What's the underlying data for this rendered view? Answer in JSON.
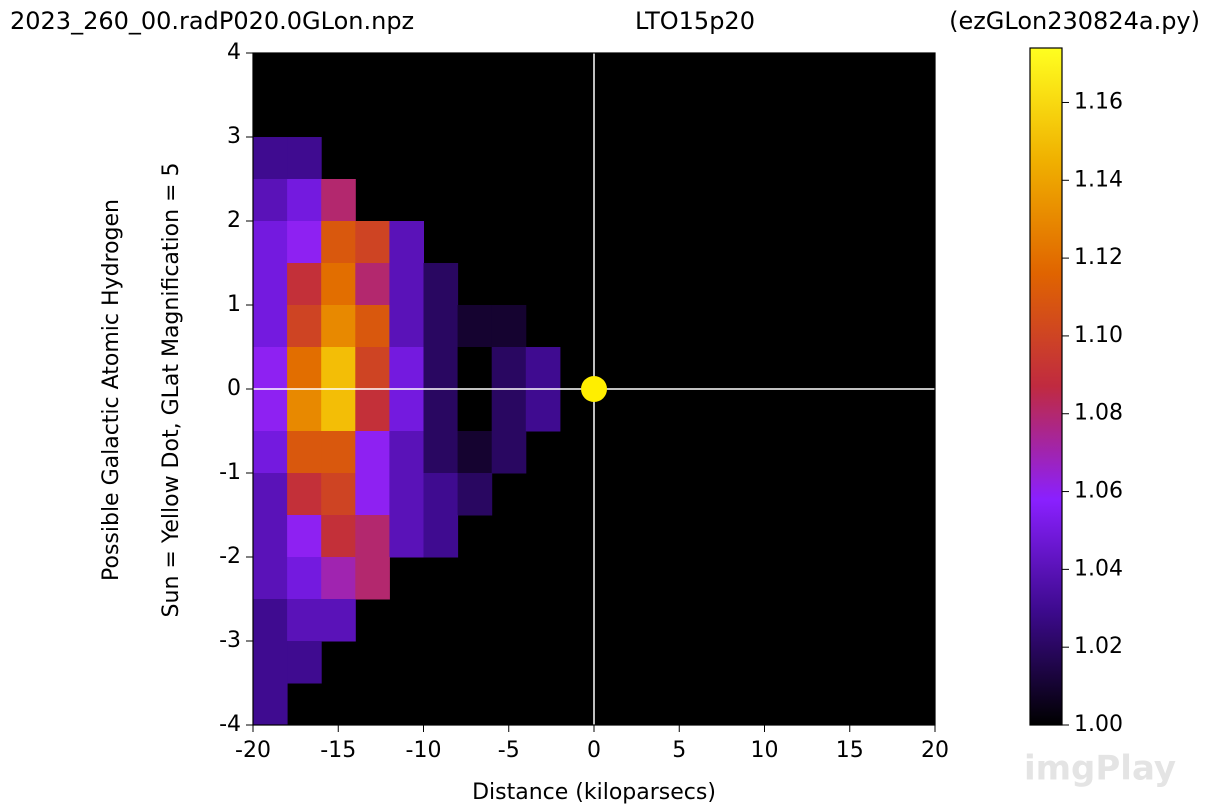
{
  "chart_data": {
    "type": "heatmap",
    "title_left": "2023_260_00.radP020.0GLon.npz",
    "title_center": "LTO15p20",
    "title_right": "(ezGLon230824a.py)",
    "ylabel": [
      "Possible Galactic Atomic Hydrogen",
      "Sun = Yellow Dot, GLat Magnification = 5"
    ],
    "xlabel": "Distance (kiloparsecs)",
    "xlim": [
      -20,
      20
    ],
    "xticks": [
      -20,
      -15,
      -10,
      -5,
      0,
      5,
      10,
      15,
      20
    ],
    "ylim": [
      -4,
      4
    ],
    "yticks": [
      -4,
      -3,
      -2,
      -1,
      0,
      1,
      2,
      3,
      4
    ],
    "x": [
      -19,
      -17,
      -15,
      -13,
      -11,
      -9,
      -7,
      -5,
      -3,
      -1
    ],
    "y": [
      3.75,
      3.25,
      2.75,
      2.25,
      1.75,
      1.25,
      0.75,
      0.25,
      -0.25,
      -0.75,
      -1.25,
      -1.75,
      -2.25,
      -2.75,
      -3.25,
      -3.75
    ],
    "z": [
      [
        null,
        null,
        null,
        null,
        null,
        null,
        null,
        null,
        null,
        null
      ],
      [
        null,
        null,
        null,
        null,
        null,
        null,
        null,
        null,
        null,
        null
      ],
      [
        1.03,
        1.03,
        null,
        null,
        null,
        null,
        null,
        null,
        null,
        null
      ],
      [
        1.04,
        1.05,
        1.08,
        null,
        null,
        null,
        null,
        null,
        null,
        null
      ],
      [
        1.05,
        1.06,
        1.11,
        1.1,
        1.04,
        null,
        null,
        null,
        null,
        null
      ],
      [
        1.05,
        1.09,
        1.12,
        1.08,
        1.04,
        1.02,
        null,
        null,
        null,
        null
      ],
      [
        1.05,
        1.1,
        1.13,
        1.11,
        1.04,
        1.02,
        1.01,
        1.01,
        null,
        null
      ],
      [
        1.06,
        1.12,
        1.15,
        1.1,
        1.05,
        1.02,
        1.0,
        1.02,
        1.03,
        null
      ],
      [
        1.06,
        1.13,
        1.15,
        1.09,
        1.05,
        1.02,
        1.0,
        1.02,
        1.03,
        null
      ],
      [
        1.05,
        1.11,
        1.11,
        1.06,
        1.04,
        1.02,
        1.01,
        1.02,
        null,
        null
      ],
      [
        1.04,
        1.09,
        1.1,
        1.06,
        1.04,
        1.03,
        1.02,
        null,
        null,
        null
      ],
      [
        1.04,
        1.06,
        1.09,
        1.08,
        1.04,
        1.03,
        null,
        null,
        null,
        null
      ],
      [
        1.04,
        1.05,
        1.07,
        1.08,
        null,
        null,
        null,
        null,
        null,
        null
      ],
      [
        1.03,
        1.04,
        1.04,
        null,
        null,
        null,
        null,
        null,
        null,
        null
      ],
      [
        1.03,
        1.03,
        null,
        null,
        null,
        null,
        null,
        null,
        null,
        null
      ],
      [
        1.03,
        null,
        null,
        null,
        null,
        null,
        null,
        null,
        null,
        null
      ]
    ],
    "background": "#000000",
    "colormap": [
      "#000000",
      "#3c0a8c",
      "#8a20ff",
      "#c02a40",
      "#e06400",
      "#f0b000",
      "#ffff20"
    ],
    "clim": [
      1.0,
      1.174
    ],
    "cticks": [
      {
        "value": 1.0,
        "label": "1.00"
      },
      1.02,
      1.04,
      1.06,
      1.08,
      {
        "value": 1.1,
        "label": "1.10"
      },
      1.12,
      1.14,
      1.16
    ],
    "sun": {
      "x": 0,
      "y": 0,
      "color": "#ffee00"
    },
    "watermark": "imgPlay"
  }
}
